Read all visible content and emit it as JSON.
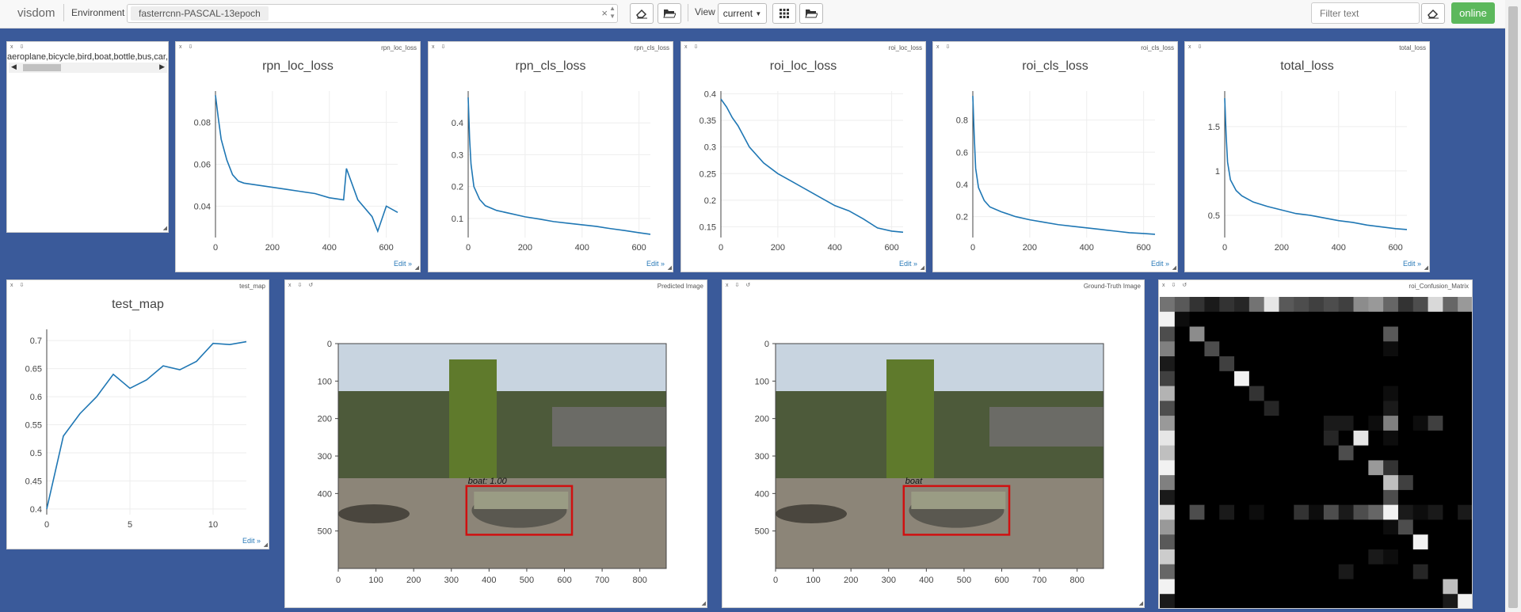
{
  "app": {
    "brand": "visdom"
  },
  "toolbar": {
    "env_label": "Environment",
    "env_value": "fasterrcnn-PASCAL-13epoch",
    "view_label": "View",
    "view_value": "current",
    "filter_placeholder": "Filter text",
    "online_label": "online",
    "icons": [
      "eraser-icon",
      "folder-open-icon",
      "grid-icon",
      "folder-open-icon",
      "eraser-icon"
    ]
  },
  "panes": {
    "text": {
      "title": "",
      "content": "aeroplane,bicycle,bird,boat,bottle,bus,car,cat,chair,cow,diningtable,dog,horse,motorbike,person,pottedplant,sheep,sofa,train,tvmonitor"
    },
    "rpn_loc": {
      "window": "rpn_loc_loss",
      "edit": "Edit »"
    },
    "rpn_cls": {
      "window": "rpn_cls_loss",
      "edit": "Edit »"
    },
    "roi_loc": {
      "window": "roi_loc_loss",
      "edit": "Edit »"
    },
    "roi_cls": {
      "window": "roi_cls_loss",
      "edit": "Edit »"
    },
    "total": {
      "window": "total_loss",
      "edit": "Edit »"
    },
    "test_map": {
      "window": "test_map",
      "edit": "Edit »"
    },
    "pred_img": {
      "window": "Predicted Image",
      "label": "boat: 1.00",
      "box_color": "#d01010"
    },
    "gt_img": {
      "window": "Ground-Truth Image",
      "label": "boat",
      "box_color": "#d01010"
    },
    "confusion": {
      "window": "roi_Confusion_Matrix"
    }
  },
  "chart_data": [
    {
      "type": "line",
      "title": "rpn_loc_loss",
      "xlim": [
        0,
        640
      ],
      "ylim": [
        0.025,
        0.095
      ],
      "xticks": [
        0,
        200,
        400,
        600
      ],
      "yticks": [
        0.04,
        0.06,
        0.08
      ],
      "x": [
        0,
        10,
        20,
        40,
        60,
        80,
        100,
        150,
        200,
        250,
        300,
        350,
        400,
        450,
        460,
        500,
        550,
        570,
        600,
        640
      ],
      "y": [
        0.093,
        0.082,
        0.072,
        0.062,
        0.055,
        0.052,
        0.051,
        0.05,
        0.049,
        0.048,
        0.047,
        0.046,
        0.044,
        0.043,
        0.058,
        0.043,
        0.035,
        0.028,
        0.04,
        0.037
      ]
    },
    {
      "type": "line",
      "title": "rpn_cls_loss",
      "xlim": [
        0,
        640
      ],
      "ylim": [
        0.04,
        0.5
      ],
      "xticks": [
        0,
        200,
        400,
        600
      ],
      "yticks": [
        0.1,
        0.2,
        0.3,
        0.4
      ],
      "x": [
        0,
        5,
        10,
        20,
        40,
        60,
        100,
        150,
        200,
        250,
        300,
        350,
        400,
        450,
        500,
        550,
        600,
        640
      ],
      "y": [
        0.48,
        0.35,
        0.27,
        0.2,
        0.16,
        0.14,
        0.125,
        0.115,
        0.105,
        0.098,
        0.09,
        0.085,
        0.08,
        0.075,
        0.068,
        0.062,
        0.055,
        0.05
      ]
    },
    {
      "type": "line",
      "title": "roi_loc_loss",
      "xlim": [
        0,
        640
      ],
      "ylim": [
        0.13,
        0.405
      ],
      "xticks": [
        0,
        200,
        400,
        600
      ],
      "yticks": [
        0.15,
        0.2,
        0.25,
        0.3,
        0.35,
        0.4
      ],
      "x": [
        0,
        20,
        40,
        60,
        80,
        100,
        150,
        200,
        250,
        300,
        350,
        400,
        450,
        500,
        550,
        600,
        640
      ],
      "y": [
        0.39,
        0.375,
        0.355,
        0.34,
        0.32,
        0.3,
        0.27,
        0.25,
        0.235,
        0.22,
        0.205,
        0.19,
        0.18,
        0.165,
        0.148,
        0.142,
        0.14
      ]
    },
    {
      "type": "line",
      "title": "roi_cls_loss",
      "xlim": [
        0,
        640
      ],
      "ylim": [
        0.07,
        0.98
      ],
      "xticks": [
        0,
        200,
        400,
        600
      ],
      "yticks": [
        0.2,
        0.4,
        0.6,
        0.8
      ],
      "x": [
        0,
        5,
        10,
        20,
        40,
        60,
        100,
        150,
        200,
        250,
        300,
        350,
        400,
        450,
        500,
        550,
        600,
        640
      ],
      "y": [
        0.95,
        0.7,
        0.5,
        0.38,
        0.3,
        0.26,
        0.23,
        0.2,
        0.18,
        0.165,
        0.15,
        0.14,
        0.13,
        0.12,
        0.11,
        0.1,
        0.095,
        0.09
      ]
    },
    {
      "type": "line",
      "title": "total_loss",
      "xlim": [
        0,
        640
      ],
      "ylim": [
        0.25,
        1.9
      ],
      "xticks": [
        0,
        200,
        400,
        600
      ],
      "yticks": [
        0.5,
        1,
        1.5
      ],
      "x": [
        0,
        5,
        10,
        20,
        40,
        60,
        100,
        150,
        200,
        250,
        300,
        350,
        400,
        450,
        500,
        550,
        600,
        640
      ],
      "y": [
        1.82,
        1.4,
        1.1,
        0.9,
        0.78,
        0.72,
        0.65,
        0.6,
        0.56,
        0.52,
        0.5,
        0.47,
        0.44,
        0.42,
        0.39,
        0.37,
        0.35,
        0.34
      ]
    },
    {
      "type": "line",
      "title": "test_map",
      "xlim": [
        0,
        12
      ],
      "ylim": [
        0.39,
        0.72
      ],
      "xticks": [
        0,
        5,
        10
      ],
      "yticks": [
        0.4,
        0.45,
        0.5,
        0.55,
        0.6,
        0.65,
        0.7
      ],
      "x": [
        0,
        1,
        2,
        3,
        4,
        5,
        6,
        7,
        8,
        9,
        10,
        11,
        12
      ],
      "y": [
        0.4,
        0.53,
        0.57,
        0.6,
        0.64,
        0.615,
        0.63,
        0.655,
        0.648,
        0.663,
        0.695,
        0.693,
        0.698
      ]
    },
    {
      "type": "heatmap",
      "title": "roi_Confusion_Matrix",
      "rows": 21,
      "cols": 21,
      "values": [
        [
          0.45,
          0.35,
          0.2,
          0.1,
          0.2,
          0.15,
          0.45,
          0.9,
          0.35,
          0.3,
          0.25,
          0.3,
          0.25,
          0.55,
          0.6,
          0.4,
          0.2,
          0.3,
          0.85,
          0.4,
          0.6
        ],
        [
          0.95,
          0.05,
          0,
          0,
          0,
          0,
          0,
          0,
          0,
          0,
          0,
          0,
          0,
          0,
          0,
          0,
          0,
          0,
          0,
          0,
          0
        ],
        [
          0.3,
          0,
          0.55,
          0,
          0,
          0,
          0,
          0,
          0,
          0,
          0,
          0,
          0,
          0,
          0,
          0.35,
          0,
          0,
          0,
          0,
          0
        ],
        [
          0.5,
          0,
          0,
          0.3,
          0,
          0,
          0,
          0,
          0,
          0,
          0,
          0,
          0,
          0,
          0,
          0.05,
          0,
          0,
          0,
          0,
          0
        ],
        [
          0.1,
          0,
          0,
          0,
          0.25,
          0,
          0,
          0,
          0,
          0,
          0,
          0,
          0,
          0,
          0,
          0,
          0,
          0,
          0,
          0,
          0
        ],
        [
          0.25,
          0,
          0,
          0,
          0,
          0.95,
          0,
          0,
          0,
          0,
          0,
          0,
          0,
          0,
          0,
          0,
          0,
          0,
          0,
          0,
          0
        ],
        [
          0.7,
          0,
          0,
          0,
          0,
          0,
          0.2,
          0,
          0,
          0,
          0,
          0,
          0,
          0,
          0,
          0.05,
          0,
          0,
          0,
          0,
          0
        ],
        [
          0.3,
          0,
          0,
          0,
          0,
          0,
          0,
          0.15,
          0,
          0,
          0,
          0,
          0,
          0,
          0,
          0.1,
          0,
          0,
          0,
          0,
          0
        ],
        [
          0.6,
          0,
          0,
          0,
          0,
          0,
          0,
          0,
          0,
          0,
          0,
          0.1,
          0.1,
          0,
          0.05,
          0.5,
          0,
          0.05,
          0.25,
          0,
          0
        ],
        [
          0.9,
          0,
          0,
          0,
          0,
          0,
          0,
          0,
          0,
          0,
          0,
          0.15,
          0,
          0.9,
          0,
          0.05,
          0,
          0,
          0,
          0,
          0
        ],
        [
          0.75,
          0,
          0,
          0,
          0,
          0,
          0,
          0,
          0,
          0,
          0,
          0,
          0.3,
          0,
          0,
          0,
          0,
          0,
          0,
          0,
          0
        ],
        [
          0.95,
          0,
          0,
          0,
          0,
          0,
          0,
          0,
          0,
          0,
          0,
          0,
          0,
          0,
          0.6,
          0.2,
          0,
          0,
          0,
          0,
          0
        ],
        [
          0.5,
          0,
          0,
          0,
          0,
          0,
          0,
          0,
          0,
          0,
          0,
          0,
          0,
          0,
          0,
          0.75,
          0.25,
          0,
          0,
          0,
          0
        ],
        [
          0.1,
          0,
          0,
          0,
          0,
          0,
          0,
          0,
          0,
          0,
          0,
          0,
          0,
          0,
          0,
          0.3,
          0,
          0,
          0,
          0,
          0
        ],
        [
          0.85,
          0,
          0.3,
          0,
          0.1,
          0,
          0.05,
          0,
          0,
          0.2,
          0.05,
          0.3,
          0.1,
          0.3,
          0.4,
          0.95,
          0.1,
          0.05,
          0.1,
          0,
          0.1
        ],
        [
          0.6,
          0,
          0,
          0,
          0,
          0,
          0,
          0,
          0,
          0,
          0,
          0,
          0,
          0,
          0,
          0.05,
          0.3,
          0,
          0,
          0,
          0
        ],
        [
          0.35,
          0,
          0,
          0,
          0,
          0,
          0,
          0,
          0,
          0,
          0,
          0,
          0,
          0,
          0,
          0,
          0,
          0.95,
          0,
          0,
          0
        ],
        [
          0.8,
          0,
          0,
          0,
          0,
          0,
          0,
          0,
          0,
          0,
          0,
          0,
          0,
          0,
          0.1,
          0.05,
          0,
          0,
          0,
          0,
          0
        ],
        [
          0.4,
          0,
          0,
          0,
          0,
          0,
          0,
          0,
          0,
          0,
          0,
          0,
          0.1,
          0,
          0,
          0,
          0,
          0.15,
          0,
          0,
          0
        ],
        [
          0.95,
          0,
          0,
          0,
          0,
          0,
          0,
          0,
          0,
          0,
          0,
          0,
          0,
          0,
          0,
          0,
          0,
          0,
          0,
          0.75,
          0
        ],
        [
          0.1,
          0,
          0,
          0,
          0,
          0,
          0,
          0,
          0,
          0,
          0,
          0,
          0,
          0,
          0,
          0,
          0,
          0,
          0,
          0.1,
          0.95
        ]
      ]
    }
  ],
  "image_plots": {
    "xticks": [
      0,
      100,
      200,
      300,
      400,
      500,
      600,
      700,
      800
    ],
    "yticks": [
      0,
      100,
      200,
      300,
      400,
      500
    ],
    "xlim": [
      0,
      870
    ],
    "ylim": [
      600,
      0
    ],
    "box": {
      "x0": 340,
      "y0": 380,
      "x1": 620,
      "y1": 510
    }
  }
}
